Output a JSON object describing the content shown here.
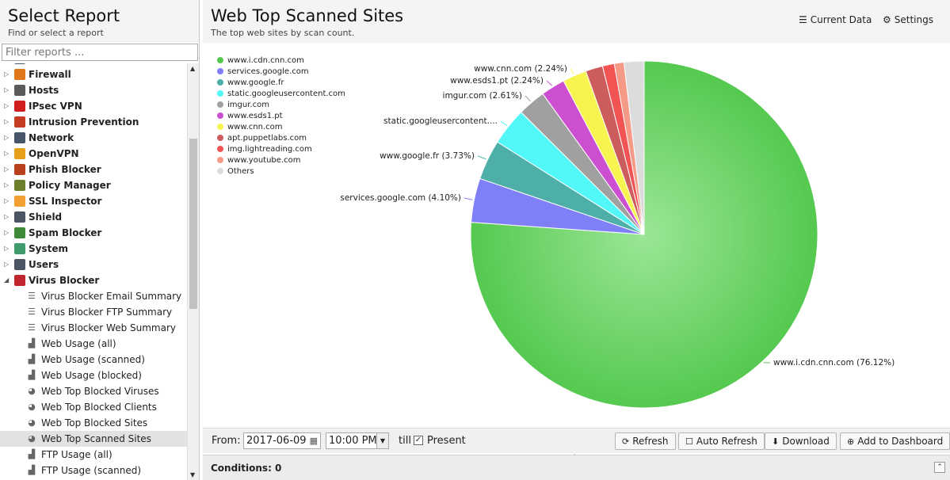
{
  "left": {
    "title": "Select Report",
    "subtitle": "Find or select a report",
    "filter_placeholder": "Filter reports ...",
    "apps": [
      {
        "label": "Firewall",
        "color": "#e0781b"
      },
      {
        "label": "Hosts",
        "color": "#5a5a5a"
      },
      {
        "label": "IPsec VPN",
        "color": "#d11f1f"
      },
      {
        "label": "Intrusion Prevention",
        "color": "#c63c22"
      },
      {
        "label": "Network",
        "color": "#475569"
      },
      {
        "label": "OpenVPN",
        "color": "#e7a01b"
      },
      {
        "label": "Phish Blocker",
        "color": "#b8401b"
      },
      {
        "label": "Policy Manager",
        "color": "#6b7f2a"
      },
      {
        "label": "SSL Inspector",
        "color": "#f2a031"
      },
      {
        "label": "Shield",
        "color": "#4b5563"
      },
      {
        "label": "Spam Blocker",
        "color": "#3e8a3a"
      },
      {
        "label": "System",
        "color": "#3f9b6b"
      },
      {
        "label": "Users",
        "color": "#4b5563"
      },
      {
        "label": "Virus Blocker",
        "color": "#c0262d"
      }
    ],
    "reports": [
      {
        "label": "Virus Blocker Email Summary",
        "icon": "text-report-icon"
      },
      {
        "label": "Virus Blocker FTP Summary",
        "icon": "text-report-icon"
      },
      {
        "label": "Virus Blocker Web Summary",
        "icon": "text-report-icon"
      },
      {
        "label": "Web Usage (all)",
        "icon": "bar-chart-icon"
      },
      {
        "label": "Web Usage (scanned)",
        "icon": "bar-chart-icon"
      },
      {
        "label": "Web Usage (blocked)",
        "icon": "bar-chart-icon"
      },
      {
        "label": "Web Top Blocked Viruses",
        "icon": "pie-chart-icon"
      },
      {
        "label": "Web Top Blocked Clients",
        "icon": "pie-chart-icon"
      },
      {
        "label": "Web Top Blocked Sites",
        "icon": "pie-chart-icon"
      },
      {
        "label": "Web Top Scanned Sites",
        "icon": "pie-chart-icon",
        "selected": true
      },
      {
        "label": "FTP Usage (all)",
        "icon": "bar-chart-icon"
      },
      {
        "label": "FTP Usage (scanned)",
        "icon": "bar-chart-icon"
      }
    ]
  },
  "main": {
    "title": "Web Top Scanned Sites",
    "subtitle": "The top web sites by scan count.",
    "current_data_label": "Current Data",
    "settings_label": "Settings"
  },
  "toolbar": {
    "from_label": "From:",
    "date_value": "2017-06-09",
    "time_value": "10:00 PM",
    "till_label": "till",
    "present_label": "Present",
    "present_checked": true,
    "refresh_label": "Refresh",
    "auto_refresh_label": "Auto Refresh",
    "download_label": "Download",
    "add_dashboard_label": "Add to Dashboard"
  },
  "conditions": {
    "label": "Conditions: 0"
  },
  "chart_data": {
    "type": "pie",
    "title": "",
    "legend_position": "top-left",
    "slices": [
      {
        "name": "www.i.cdn.cnn.com",
        "value": 76.12,
        "label": "www.i.cdn.cnn.com (76.12%)",
        "color": "#55c94f"
      },
      {
        "name": "services.google.com",
        "value": 4.1,
        "label": "services.google.com (4.10%)",
        "color": "#7f7ff7"
      },
      {
        "name": "www.google.fr",
        "value": 3.73,
        "label": "www.google.fr (3.73%)",
        "color": "#4dafa8"
      },
      {
        "name": "static.googleusercontent.com",
        "value": 3.5,
        "label": "static.googleusercontent....",
        "color": "#52f7f7"
      },
      {
        "name": "imgur.com",
        "value": 2.61,
        "label": "imgur.com (2.61%)",
        "color": "#a0a0a0"
      },
      {
        "name": "www.esds1.pt",
        "value": 2.24,
        "label": "www.esds1.pt (2.24%)",
        "color": "#cc4fd0"
      },
      {
        "name": "www.cnn.com",
        "value": 2.24,
        "label": "www.cnn.com (2.24%)",
        "color": "#f7f34f"
      },
      {
        "name": "apt.puppetlabs.com",
        "value": 1.6,
        "label": "",
        "color": "#cd5c5c"
      },
      {
        "name": "img.lightreading.com",
        "value": 1.1,
        "label": "",
        "color": "#f25454"
      },
      {
        "name": "www.youtube.com",
        "value": 0.9,
        "label": "",
        "color": "#f59a86"
      },
      {
        "name": "Others",
        "value": 1.86,
        "label": "",
        "color": "#dcdcdc"
      }
    ]
  }
}
